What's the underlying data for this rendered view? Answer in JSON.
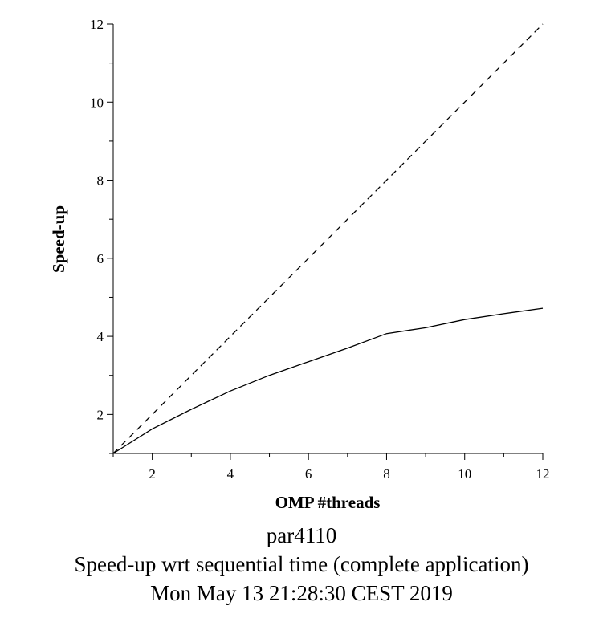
{
  "chart_data": {
    "type": "line",
    "xlabel": "OMP #threads",
    "ylabel": "Speed-up",
    "xlim": [
      1,
      12
    ],
    "ylim": [
      1,
      12
    ],
    "x_ticks": [
      2,
      4,
      6,
      8,
      10,
      12
    ],
    "y_ticks": [
      2,
      4,
      6,
      8,
      10,
      12
    ],
    "grid": false,
    "series": [
      {
        "style": "dashed",
        "x": [
          1,
          12
        ],
        "values": [
          1,
          12
        ]
      },
      {
        "style": "solid",
        "x": [
          1,
          2,
          3,
          4,
          5,
          6,
          7,
          8,
          9,
          10,
          11,
          12
        ],
        "values": [
          1.0,
          1.63,
          2.13,
          2.6,
          3.0,
          3.35,
          3.7,
          4.07,
          4.22,
          4.43,
          4.58,
          4.72
        ]
      }
    ]
  },
  "captions": {
    "line1": "par4110",
    "line2": "Speed-up wrt sequential time (complete application)",
    "line3": "Mon May 13 21:28:30 CEST 2019"
  }
}
